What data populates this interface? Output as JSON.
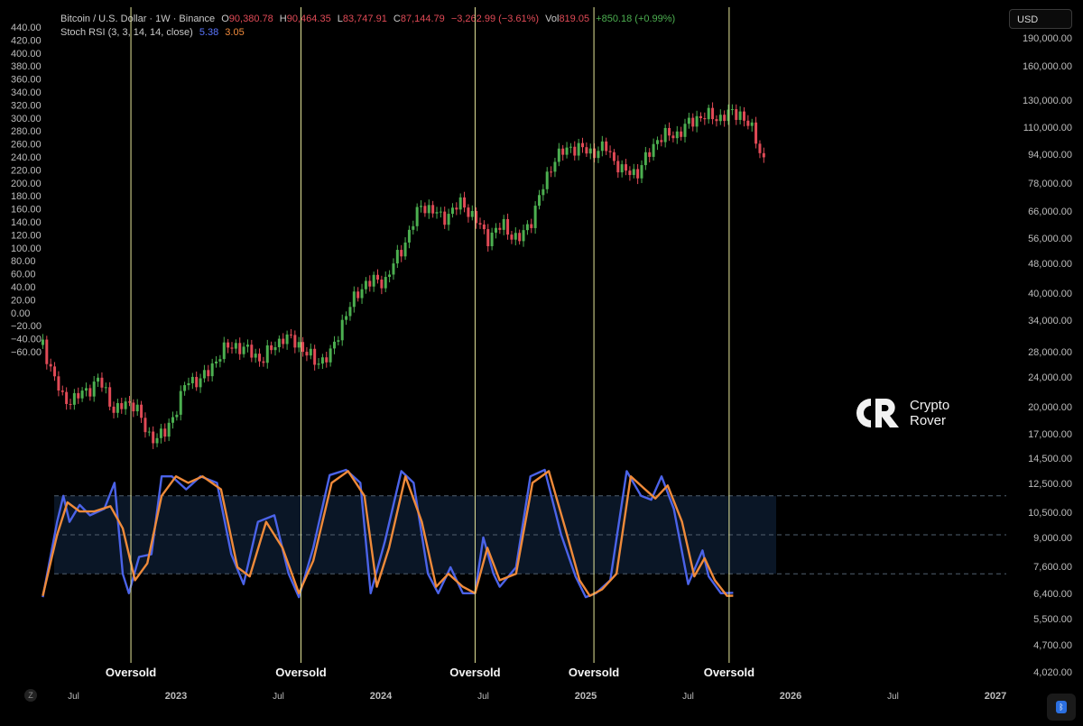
{
  "header": {
    "symbol": "Bitcoin / U.S. Dollar · 1W · Binance",
    "o_label": "O",
    "o_value": "90,380.78",
    "h_label": "H",
    "h_value": "90,464.35",
    "l_label": "L",
    "l_value": "83,747.91",
    "c_label": "C",
    "c_value": "87,144.79",
    "change": "−3,262.99 (−3.61%)",
    "vol_label": "Vol",
    "vol_value": "819.05",
    "vol_change": "+850.18 (+0.99%)",
    "indicator": "Stoch RSI (3, 3, 14, 14, close)",
    "k_value": "5.38",
    "d_value": "3.05"
  },
  "currency_button": "USD",
  "logo": {
    "line1": "Crypto",
    "line2": "Rover"
  },
  "z_button": "Z",
  "colors": {
    "up": "#4caf50",
    "down": "#e04a56",
    "k_line": "#4b63e8",
    "d_line": "#ef8a3a",
    "band_fill": "#0a1626",
    "marker": "#e6e79a"
  },
  "chart_data": {
    "type": "candlestick+line",
    "left_axis_ticks": [
      "440.00",
      "420.00",
      "400.00",
      "380.00",
      "360.00",
      "340.00",
      "320.00",
      "300.00",
      "280.00",
      "260.00",
      "240.00",
      "220.00",
      "200.00",
      "180.00",
      "160.00",
      "140.00",
      "120.00",
      "100.00",
      "80.00",
      "60.00",
      "40.00",
      "20.00",
      "0.00",
      "−20.00",
      "−40.00",
      "−60.00"
    ],
    "right_axis_ticks": [
      "190,000.00",
      "160,000.00",
      "130,000.00",
      "110,000.00",
      "94,000.00",
      "78,000.00",
      "66,000.00",
      "56,000.00",
      "48,000.00",
      "40,000.00",
      "34,000.00",
      "28,000.00",
      "24,000.00",
      "20,000.00",
      "17,000.00",
      "14,500.00",
      "12,500.00",
      "10,500.00",
      "9,000.00",
      "7,600.00",
      "6,400.00",
      "5,500.00",
      "4,700.00",
      "4,020.00"
    ],
    "x_ticks": [
      {
        "label": "Jul",
        "t": 2022.5
      },
      {
        "label": "2023",
        "t": 2023.0
      },
      {
        "label": "Jul",
        "t": 2023.5
      },
      {
        "label": "2024",
        "t": 2024.0
      },
      {
        "label": "Jul",
        "t": 2024.5
      },
      {
        "label": "2025",
        "t": 2025.0
      },
      {
        "label": "Jul",
        "t": 2025.5
      },
      {
        "label": "2026",
        "t": 2026.0
      },
      {
        "label": "Jul",
        "t": 2026.5
      },
      {
        "label": "2027",
        "t": 2027.0
      }
    ],
    "price_path": [
      [
        2022.35,
        29000
      ],
      [
        2022.45,
        20500
      ],
      [
        2022.55,
        21500
      ],
      [
        2022.62,
        23500
      ],
      [
        2022.7,
        19500
      ],
      [
        2022.8,
        20500
      ],
      [
        2022.86,
        16500
      ],
      [
        2022.95,
        16800
      ],
      [
        2023.05,
        23000
      ],
      [
        2023.15,
        24000
      ],
      [
        2023.22,
        28000
      ],
      [
        2023.3,
        29000
      ],
      [
        2023.42,
        26500
      ],
      [
        2023.52,
        30500
      ],
      [
        2023.6,
        29200
      ],
      [
        2023.68,
        26000
      ],
      [
        2023.76,
        27500
      ],
      [
        2023.82,
        34500
      ],
      [
        2023.92,
        42500
      ],
      [
        2024.02,
        43000
      ],
      [
        2024.1,
        52000
      ],
      [
        2024.2,
        69000
      ],
      [
        2024.3,
        63000
      ],
      [
        2024.4,
        69500
      ],
      [
        2024.52,
        56000
      ],
      [
        2024.6,
        60500
      ],
      [
        2024.67,
        54500
      ],
      [
        2024.74,
        63500
      ],
      [
        2024.84,
        90000
      ],
      [
        2024.93,
        98000
      ],
      [
        2025.02,
        94500
      ],
      [
        2025.1,
        97000
      ],
      [
        2025.18,
        83500
      ],
      [
        2025.26,
        84000
      ],
      [
        2025.35,
        103000
      ],
      [
        2025.45,
        106000
      ],
      [
        2025.55,
        118000
      ],
      [
        2025.65,
        117000
      ],
      [
        2025.75,
        121000
      ],
      [
        2025.82,
        106000
      ],
      [
        2025.88,
        87000
      ]
    ],
    "stoch_k": [
      [
        2022.35,
        2
      ],
      [
        2022.42,
        60
      ],
      [
        2022.45,
        80
      ],
      [
        2022.48,
        60
      ],
      [
        2022.53,
        73
      ],
      [
        2022.58,
        65
      ],
      [
        2022.65,
        70
      ],
      [
        2022.7,
        90
      ],
      [
        2022.74,
        20
      ],
      [
        2022.77,
        5
      ],
      [
        2022.82,
        33
      ],
      [
        2022.88,
        35
      ],
      [
        2022.93,
        95
      ],
      [
        2022.98,
        95
      ],
      [
        2023.05,
        85
      ],
      [
        2023.12,
        95
      ],
      [
        2023.2,
        90
      ],
      [
        2023.27,
        35
      ],
      [
        2023.33,
        12
      ],
      [
        2023.4,
        60
      ],
      [
        2023.48,
        65
      ],
      [
        2023.55,
        20
      ],
      [
        2023.6,
        2
      ],
      [
        2023.67,
        40
      ],
      [
        2023.75,
        96
      ],
      [
        2023.83,
        100
      ],
      [
        2023.9,
        90
      ],
      [
        2023.95,
        5
      ],
      [
        2024.02,
        45
      ],
      [
        2024.1,
        99
      ],
      [
        2024.16,
        90
      ],
      [
        2024.23,
        20
      ],
      [
        2024.28,
        5
      ],
      [
        2024.34,
        25
      ],
      [
        2024.4,
        5
      ],
      [
        2024.46,
        5
      ],
      [
        2024.5,
        48
      ],
      [
        2024.55,
        20
      ],
      [
        2024.58,
        10
      ],
      [
        2024.66,
        25
      ],
      [
        2024.73,
        95
      ],
      [
        2024.8,
        100
      ],
      [
        2024.88,
        50
      ],
      [
        2024.95,
        18
      ],
      [
        2025.0,
        2
      ],
      [
        2025.05,
        5
      ],
      [
        2025.12,
        15
      ],
      [
        2025.2,
        99
      ],
      [
        2025.27,
        80
      ],
      [
        2025.32,
        77
      ],
      [
        2025.37,
        95
      ],
      [
        2025.43,
        70
      ],
      [
        2025.5,
        12
      ],
      [
        2025.57,
        38
      ],
      [
        2025.6,
        18
      ],
      [
        2025.66,
        5
      ],
      [
        2025.72,
        5.38
      ]
    ],
    "stoch_d": [
      [
        2022.35,
        3
      ],
      [
        2022.42,
        50
      ],
      [
        2022.47,
        75
      ],
      [
        2022.53,
        68
      ],
      [
        2022.6,
        68
      ],
      [
        2022.68,
        72
      ],
      [
        2022.74,
        55
      ],
      [
        2022.8,
        15
      ],
      [
        2022.86,
        28
      ],
      [
        2022.93,
        80
      ],
      [
        2023.0,
        95
      ],
      [
        2023.06,
        90
      ],
      [
        2023.13,
        95
      ],
      [
        2023.22,
        85
      ],
      [
        2023.3,
        25
      ],
      [
        2023.36,
        18
      ],
      [
        2023.44,
        60
      ],
      [
        2023.52,
        40
      ],
      [
        2023.6,
        5
      ],
      [
        2023.67,
        30
      ],
      [
        2023.76,
        90
      ],
      [
        2023.84,
        99
      ],
      [
        2023.92,
        80
      ],
      [
        2023.98,
        10
      ],
      [
        2024.04,
        40
      ],
      [
        2024.12,
        95
      ],
      [
        2024.2,
        60
      ],
      [
        2024.27,
        10
      ],
      [
        2024.33,
        20
      ],
      [
        2024.4,
        10
      ],
      [
        2024.46,
        5
      ],
      [
        2024.52,
        40
      ],
      [
        2024.58,
        15
      ],
      [
        2024.66,
        20
      ],
      [
        2024.74,
        90
      ],
      [
        2024.82,
        99
      ],
      [
        2024.9,
        55
      ],
      [
        2024.97,
        15
      ],
      [
        2025.02,
        3
      ],
      [
        2025.08,
        8
      ],
      [
        2025.15,
        20
      ],
      [
        2025.22,
        95
      ],
      [
        2025.29,
        85
      ],
      [
        2025.34,
        78
      ],
      [
        2025.4,
        88
      ],
      [
        2025.47,
        60
      ],
      [
        2025.53,
        18
      ],
      [
        2025.58,
        32
      ],
      [
        2025.63,
        15
      ],
      [
        2025.69,
        3
      ],
      [
        2025.72,
        3.05
      ]
    ],
    "stoch_bands": {
      "upper": 80,
      "middle": 50,
      "lower": 20
    },
    "oversold_markers": [
      {
        "label": "Oversold",
        "t": 2022.78
      },
      {
        "label": "Oversold",
        "t": 2023.61
      },
      {
        "label": "Oversold",
        "t": 2024.46
      },
      {
        "label": "Oversold",
        "t": 2025.04
      },
      {
        "label": "Oversold",
        "t": 2025.7
      }
    ]
  }
}
